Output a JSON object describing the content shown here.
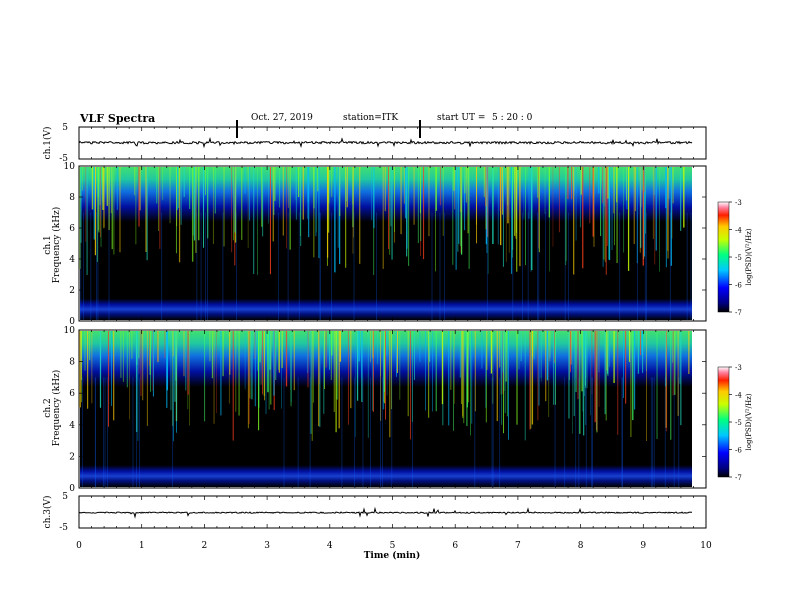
{
  "header": {
    "title": "VLF Spectra",
    "date": "Oct. 27, 2019",
    "station": "station=ITK",
    "start_label": "start UT =",
    "start_time": "5 : 20 : 0"
  },
  "chart_data": [
    {
      "type": "line",
      "panel": "ch1-waveform",
      "ylabel": "ch.1(V)",
      "ylim": [
        -5,
        5
      ],
      "yticks": [
        "5",
        "-5"
      ],
      "xlim": [
        0,
        10
      ],
      "baseline_level": 0.1
    },
    {
      "type": "heatmap",
      "panel": "ch1-spectrogram",
      "ylabel_line1": "ch.1",
      "ylabel_line2": "Frequency (kHz)",
      "ylim": [
        0,
        10
      ],
      "yticks": [
        "0",
        "2",
        "4",
        "6",
        "8",
        "10"
      ],
      "xlim": [
        0,
        10
      ],
      "colorbar_label": "log(PSD)(V²/Hz)",
      "colorbar_ticks": [
        "-3",
        "-4",
        "-5",
        "-6",
        "-7"
      ],
      "colorbar_range": [
        -7,
        -3
      ]
    },
    {
      "type": "heatmap",
      "panel": "ch2-spectrogram",
      "ylabel_line1": "ch.2",
      "ylabel_line2": "Frequency (kHz)",
      "ylim": [
        0,
        10
      ],
      "yticks": [
        "0",
        "2",
        "4",
        "6",
        "8",
        "10"
      ],
      "xlim": [
        0,
        10
      ],
      "colorbar_label": "log(PSD)(V²/Hz)",
      "colorbar_ticks": [
        "-3",
        "-4",
        "-5",
        "-6",
        "-7"
      ],
      "colorbar_range": [
        -7,
        -3
      ]
    },
    {
      "type": "line",
      "panel": "ch3-waveform",
      "ylabel": "ch.3(V)",
      "ylim": [
        -5,
        5
      ],
      "yticks": [
        "5",
        "-5"
      ],
      "xlim": [
        0,
        10
      ],
      "baseline_level": -0.2,
      "xlabel": "Time (min)",
      "xticks": [
        "0",
        "1",
        "2",
        "3",
        "4",
        "5",
        "6",
        "7",
        "8",
        "9",
        "10"
      ]
    }
  ]
}
